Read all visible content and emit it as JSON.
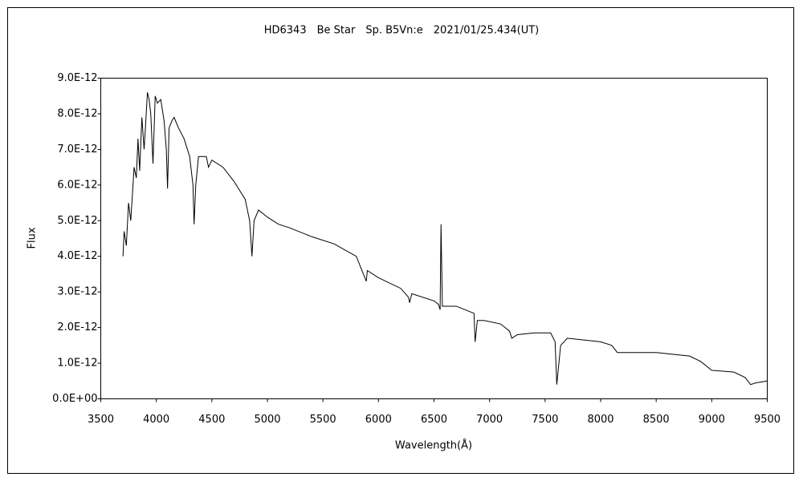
{
  "chart_data": {
    "type": "line",
    "title": "HD6343　Be Star　Sp. B5Vn:e　2021/01/25.434(UT)",
    "x_label": "Wavelength(Å)",
    "y_label": "Flux",
    "x": [
      3700,
      3710,
      3730,
      3750,
      3770,
      3790,
      3800,
      3820,
      3835,
      3850,
      3870,
      3890,
      3900,
      3920,
      3935,
      3950,
      3970,
      3990,
      4010,
      4040,
      4070,
      4090,
      4101,
      4115,
      4140,
      4160,
      4200,
      4250,
      4300,
      4330,
      4340,
      4355,
      4380,
      4450,
      4470,
      4500,
      4600,
      4700,
      4800,
      4840,
      4861,
      4880,
      4920,
      5000,
      5100,
      5200,
      5400,
      5600,
      5800,
      5890,
      5900,
      6000,
      6200,
      6270,
      6280,
      6300,
      6500,
      6540,
      6555,
      6563,
      6575,
      6700,
      6860,
      6870,
      6890,
      6950,
      7100,
      7180,
      7200,
      7250,
      7400,
      7550,
      7590,
      7605,
      7640,
      7700,
      8000,
      8100,
      8150,
      8500,
      8800,
      8900,
      9000,
      9200,
      9300,
      9350,
      9400,
      9500
    ],
    "series": [
      {
        "name": "Flux",
        "color": "#000000",
        "values": [
          4e-12,
          4.7e-12,
          4.3e-12,
          5.5e-12,
          5e-12,
          6e-12,
          6.5e-12,
          6.2e-12,
          7.3e-12,
          6.4e-12,
          7.9e-12,
          7e-12,
          7.5e-12,
          8.6e-12,
          8.4e-12,
          8e-12,
          6.6e-12,
          8.5e-12,
          8.3e-12,
          8.4e-12,
          7.8e-12,
          7e-12,
          5.9e-12,
          7.6e-12,
          7.8e-12,
          7.9e-12,
          7.6e-12,
          7.3e-12,
          6.8e-12,
          6e-12,
          4.9e-12,
          6e-12,
          6.8e-12,
          6.8e-12,
          6.5e-12,
          6.7e-12,
          6.5e-12,
          6.1e-12,
          5.6e-12,
          5e-12,
          4e-12,
          5e-12,
          5.3e-12,
          5.1e-12,
          4.9e-12,
          4.8e-12,
          4.55e-12,
          4.35e-12,
          4e-12,
          3.3e-12,
          3.6e-12,
          3.4e-12,
          3.1e-12,
          2.85e-12,
          2.7e-12,
          2.95e-12,
          2.75e-12,
          2.65e-12,
          2.5e-12,
          4.9e-12,
          2.6e-12,
          2.6e-12,
          2.4e-12,
          1.6e-12,
          2.2e-12,
          2.2e-12,
          2.1e-12,
          1.9e-12,
          1.7e-12,
          1.8e-12,
          1.85e-12,
          1.85e-12,
          1.6e-12,
          4e-13,
          1.5e-12,
          1.7e-12,
          1.6e-12,
          1.5e-12,
          1.3e-12,
          1.3e-12,
          1.2e-12,
          1.05e-12,
          8e-13,
          7.5e-13,
          6e-13,
          4e-13,
          4.5e-13,
          5e-13
        ]
      }
    ],
    "xlim": [
      3500,
      9500
    ],
    "xticks": [
      3500,
      4000,
      4500,
      5000,
      5500,
      6000,
      6500,
      7000,
      7500,
      8000,
      8500,
      9000,
      9500
    ],
    "ylim": [
      0,
      9e-12
    ],
    "yticks": [
      {
        "value": 0,
        "label": "0.0E+00"
      },
      {
        "value": 1e-12,
        "label": "1.0E-12"
      },
      {
        "value": 2e-12,
        "label": "2.0E-12"
      },
      {
        "value": 3e-12,
        "label": "3.0E-12"
      },
      {
        "value": 4e-12,
        "label": "4.0E-12"
      },
      {
        "value": 5e-12,
        "label": "5.0E-12"
      },
      {
        "value": 6e-12,
        "label": "6.0E-12"
      },
      {
        "value": 7e-12,
        "label": "7.0E-12"
      },
      {
        "value": 8e-12,
        "label": "8.0E-12"
      },
      {
        "value": 9e-12,
        "label": "9.0E-12"
      }
    ],
    "grid": false
  }
}
